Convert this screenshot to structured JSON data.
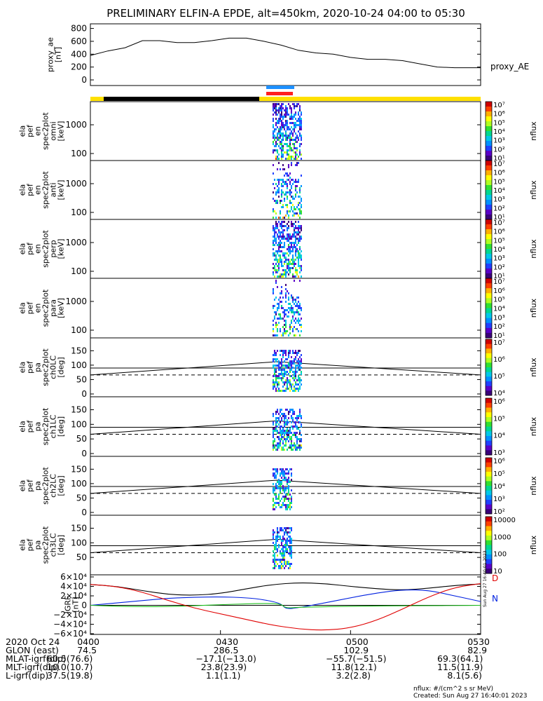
{
  "title": "PRELIMINARY ELFIN-A EPDE, alt=450km, 2020-10-24 04:00 to 05:30",
  "colors": {
    "sunlight_bar": "#ffe000",
    "shadow_bar": "#000000",
    "science_blue": "#1e90ff",
    "science_red": "#ff2020",
    "grf_x": "#0020e0",
    "grf_y": "#20c020",
    "grf_z": "#e00000"
  },
  "chart_data": [
    {
      "id": "proxy_ae",
      "type": "line",
      "ylabel_lines": [
        "proxy_ae",
        "[nT]"
      ],
      "legend": "proxy_AE",
      "yticks": [
        "800",
        "600",
        "400",
        "200",
        "0"
      ],
      "ylim": [
        0,
        850
      ],
      "x": [
        0,
        4,
        8,
        12,
        16,
        20,
        24,
        28,
        32,
        36,
        40,
        44,
        48,
        52,
        56,
        60,
        64,
        68,
        72,
        76,
        80,
        84,
        88,
        90
      ],
      "values": [
        380,
        450,
        500,
        610,
        610,
        580,
        580,
        610,
        650,
        650,
        600,
        540,
        460,
        420,
        400,
        350,
        320,
        320,
        300,
        250,
        200,
        190,
        190,
        190
      ]
    },
    {
      "id": "pef_en_omni",
      "type": "heatmap",
      "ylabel_lines": [
        "ela",
        "pef",
        "en",
        "spec2plot",
        "omni",
        "[keV]"
      ],
      "yticks": [
        "1000",
        "100"
      ],
      "colorbar": {
        "label": "nflux",
        "ticks": [
          "10⁷",
          "10⁶",
          "10⁵",
          "10⁴",
          "10³",
          "10²",
          "10¹"
        ]
      }
    },
    {
      "id": "pef_en_anti",
      "type": "heatmap",
      "ylabel_lines": [
        "ela",
        "pef",
        "en",
        "spec2plot",
        "anti",
        "[keV]"
      ],
      "yticks": [
        "1000",
        "100"
      ],
      "colorbar": {
        "label": "nflux",
        "ticks": [
          "10⁷",
          "10⁶",
          "10⁵",
          "10⁴",
          "10³",
          "10²",
          "10¹"
        ]
      }
    },
    {
      "id": "pef_en_perp",
      "type": "heatmap",
      "ylabel_lines": [
        "ela",
        "pef",
        "en",
        "spec2plot",
        "perp",
        "[keV]"
      ],
      "yticks": [
        "1000",
        "100"
      ],
      "colorbar": {
        "label": "nflux",
        "ticks": [
          "10⁷",
          "10⁶",
          "10⁵",
          "10⁴",
          "10³",
          "10²",
          "10¹"
        ]
      }
    },
    {
      "id": "pef_en_para",
      "type": "heatmap",
      "ylabel_lines": [
        "ela",
        "pef",
        "en",
        "spec2plot",
        "para",
        "[keV]"
      ],
      "yticks": [
        "1000",
        "100"
      ],
      "colorbar": {
        "label": "nflux",
        "ticks": [
          "10⁷",
          "10⁶",
          "10⁵",
          "10⁴",
          "10³",
          "10²",
          "10¹"
        ]
      }
    },
    {
      "id": "pef_pa_ch0LC",
      "type": "heatmap",
      "ylabel_lines": [
        "ela",
        "pef",
        "pa",
        "spec2plot",
        "ch0LC",
        "[deg]"
      ],
      "yticks": [
        "150",
        "100",
        "50",
        "0"
      ],
      "colorbar": {
        "label": "nflux",
        "ticks": [
          "10⁷",
          "10⁶",
          "10⁵",
          "10⁴"
        ]
      }
    },
    {
      "id": "pef_pa_ch1LC",
      "type": "heatmap",
      "ylabel_lines": [
        "ela",
        "pef",
        "pa",
        "spec2plot",
        "ch1LC",
        "[deg]"
      ],
      "yticks": [
        "150",
        "100",
        "50",
        "0"
      ],
      "colorbar": {
        "label": "nflux",
        "ticks": [
          "10⁶",
          "10⁵",
          "10⁴",
          "10³"
        ]
      }
    },
    {
      "id": "pef_pa_ch2LC",
      "type": "heatmap",
      "ylabel_lines": [
        "ela",
        "pef",
        "pa",
        "spec2plot",
        "ch2LC",
        "[deg]"
      ],
      "yticks": [
        "150",
        "100",
        "50",
        "0"
      ],
      "colorbar": {
        "label": "nflux",
        "ticks": [
          "10⁶",
          "10⁵",
          "10⁴",
          "10³",
          "10²"
        ]
      }
    },
    {
      "id": "pef_pa_ch3LC",
      "type": "heatmap",
      "ylabel_lines": [
        "ela",
        "pef",
        "pa",
        "spec2plot",
        "ch3LC",
        "[deg]"
      ],
      "yticks": [
        "150",
        "100",
        "50"
      ],
      "colorbar": {
        "label": "nflux",
        "ticks": [
          "10000",
          "1000",
          "100",
          "10"
        ]
      }
    },
    {
      "id": "igrf",
      "type": "line",
      "ylabel_lines": [
        "IGRF",
        "[nT]"
      ],
      "yticks": [
        "6×10⁴",
        "4×10⁴",
        "2×10⁴",
        "0",
        "−2×10⁴",
        "−4×10⁴",
        "−6×10⁴"
      ],
      "ylim": [
        -60000,
        60000
      ],
      "legend_marks": [
        "D",
        "N"
      ],
      "vertical_stamp": "Sun Aug 27 16:40:01 2023",
      "series": [
        {
          "key": "grf_total",
          "x": [
            0,
            6,
            12,
            18,
            24,
            30,
            36,
            42,
            48,
            54,
            60,
            66,
            72,
            78,
            84,
            90
          ],
          "values": [
            44000,
            40000,
            31000,
            23000,
            21000,
            25000,
            35000,
            44000,
            48000,
            46000,
            40000,
            35000,
            32000,
            36000,
            42000,
            45000
          ]
        },
        {
          "key": "grf_x",
          "x": [
            0,
            6,
            12,
            18,
            24,
            30,
            36,
            40,
            44,
            45,
            48,
            54,
            60,
            66,
            72,
            78,
            84,
            90
          ],
          "values": [
            0,
            5000,
            10000,
            15000,
            17000,
            18000,
            16000,
            12000,
            4000,
            -8000,
            -5000,
            5000,
            16000,
            26000,
            33000,
            32000,
            20000,
            8000
          ]
        },
        {
          "key": "grf_y",
          "x": [
            0,
            6,
            12,
            18,
            24,
            30,
            36,
            40,
            44,
            45,
            48,
            54,
            60,
            66,
            72,
            78,
            84,
            90
          ],
          "values": [
            0,
            -2000,
            -3000,
            -2500,
            -1000,
            1500,
            3000,
            4000,
            3000,
            -6000,
            -4000,
            -3000,
            -2000,
            -1500,
            -1000,
            -800,
            -500,
            0
          ]
        },
        {
          "key": "grf_z",
          "x": [
            0,
            6,
            12,
            18,
            24,
            30,
            36,
            42,
            48,
            54,
            60,
            66,
            72,
            78,
            84,
            90
          ],
          "values": [
            44000,
            40000,
            28000,
            10000,
            -6000,
            -18000,
            -30000,
            -42000,
            -50000,
            -53000,
            -48000,
            -32000,
            -8000,
            18000,
            38000,
            46000
          ]
        }
      ]
    }
  ],
  "time_axis": {
    "labels": [
      "0400",
      "0430",
      "0500",
      "0530"
    ],
    "x": [
      0,
      30,
      60,
      90
    ],
    "rows": [
      {
        "label": "2020 Oct 24",
        "values": [
          "0400",
          "0430",
          "0500",
          "0530"
        ]
      },
      {
        "label": "GLON (east)",
        "values": [
          "74.5",
          "286.5",
          "102.9",
          "82.9"
        ]
      },
      {
        "label": "MLAT-igrf(dip)",
        "values": [
          "60.5(76.6)",
          "−17.1(−13.0)",
          "−55.7(−51.5)",
          "69.3(64.1)"
        ]
      },
      {
        "label": "MLT-igrf(dip)",
        "values": [
          "10.0(10.7)",
          "23.8(23.9)",
          "11.8(12.1)",
          "11.5(11.9)"
        ]
      },
      {
        "label": "L-igrf(dip)",
        "values": [
          "37.5(19.8)",
          "1.1(1.1)",
          "3.2(2.8)",
          "8.1(5.6)"
        ]
      }
    ]
  },
  "notes": {
    "units": "nflux: #/(cm^2 s sr MeV)",
    "created": "Created: Sun Aug 27 16:40:01 2023"
  }
}
